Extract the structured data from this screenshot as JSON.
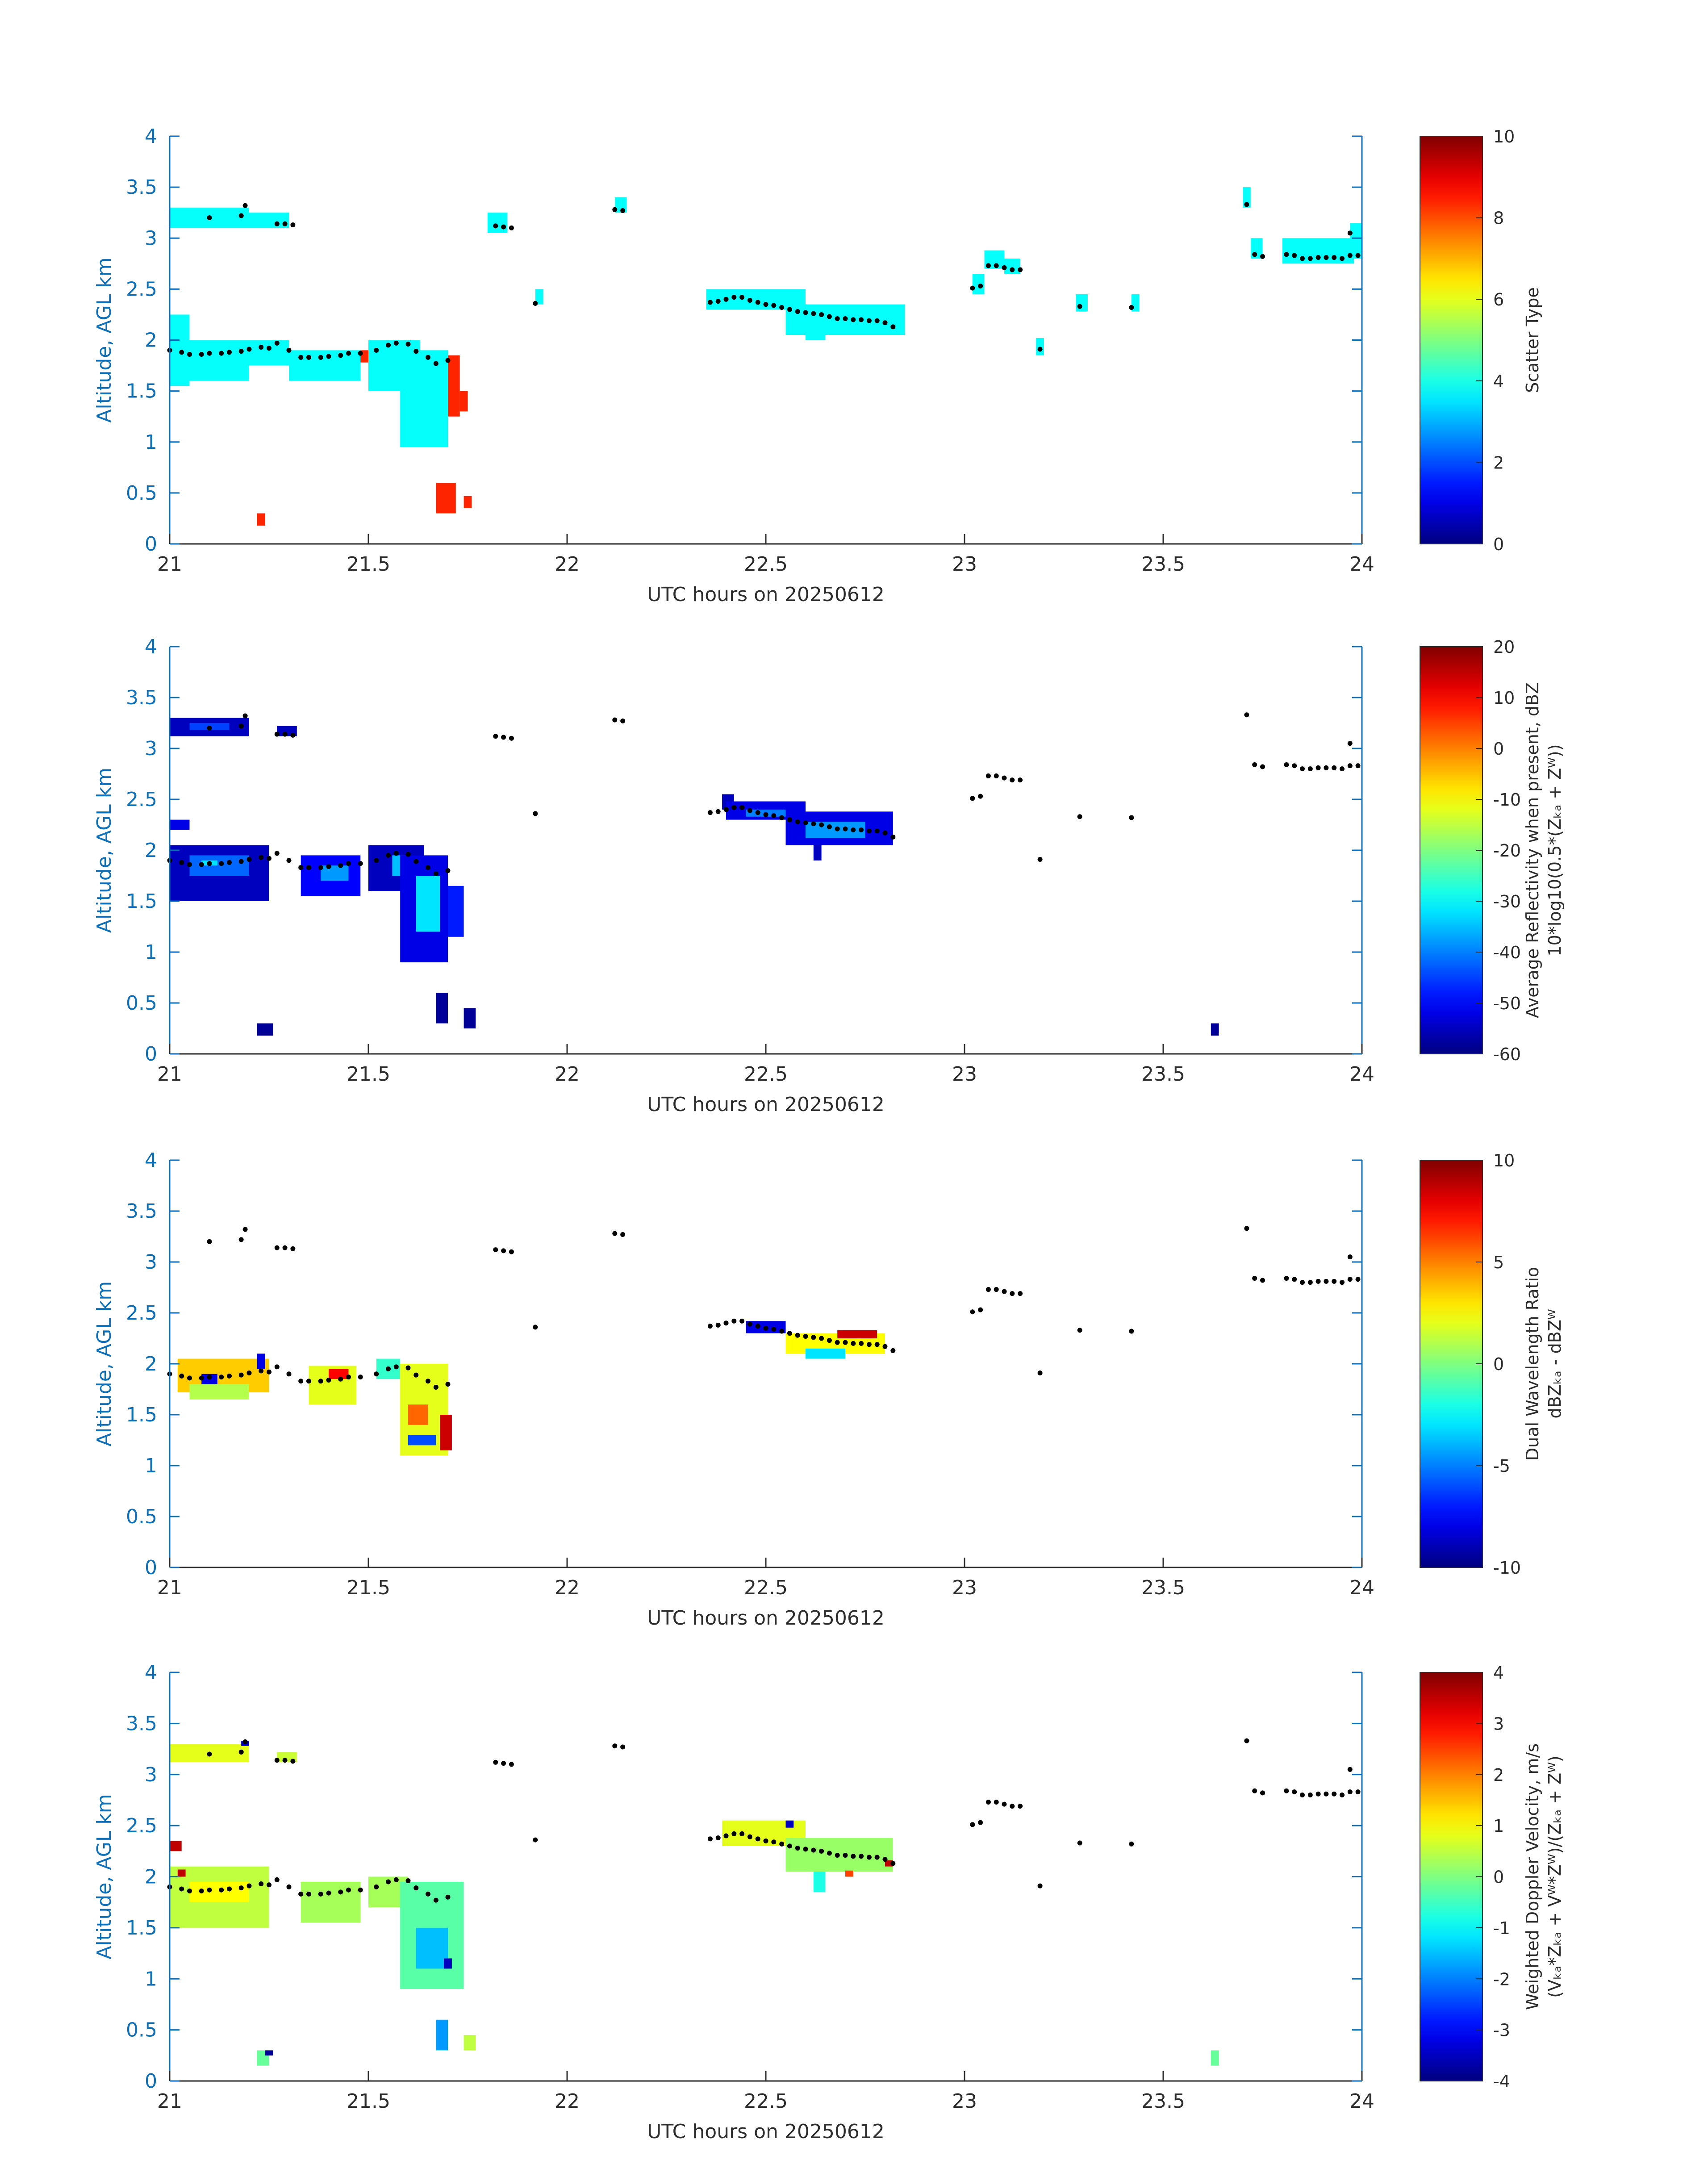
{
  "chart_data": [
    {
      "type": "heatmap",
      "xlabel": "UTC hours on 20250612",
      "ylabel": "Altitude, AGL km",
      "xlim": [
        21,
        24
      ],
      "ylim": [
        0,
        4
      ],
      "xticks": [
        "21",
        "21.5",
        "22",
        "22.5",
        "23",
        "23.5",
        "24"
      ],
      "yticks": [
        "0",
        "0.5",
        "1",
        "1.5",
        "2",
        "2.5",
        "3",
        "3.5",
        "4"
      ],
      "colorbar": {
        "label_lines": [
          "Scatter Type"
        ],
        "range": [
          0,
          10
        ],
        "ticks": [
          "0",
          "2",
          "4",
          "6",
          "8",
          "10"
        ]
      },
      "cells": [
        [
          21.0,
          21.2,
          3.1,
          3.3,
          3.8
        ],
        [
          21.2,
          21.3,
          3.1,
          3.25,
          3.8
        ],
        [
          21.8,
          21.85,
          3.05,
          3.25,
          3.8
        ],
        [
          21.92,
          21.94,
          2.35,
          2.5,
          3.8
        ],
        [
          22.12,
          22.15,
          3.25,
          3.4,
          3.8
        ],
        [
          21.0,
          21.05,
          1.55,
          2.25,
          3.8
        ],
        [
          21.05,
          21.2,
          1.6,
          2.0,
          3.8
        ],
        [
          21.2,
          21.3,
          1.75,
          2.0,
          3.8
        ],
        [
          21.3,
          21.48,
          1.6,
          1.9,
          3.8
        ],
        [
          21.5,
          21.63,
          1.5,
          2.0,
          3.8
        ],
        [
          21.58,
          21.7,
          0.95,
          1.9,
          3.8
        ],
        [
          21.48,
          21.5,
          1.78,
          1.9,
          8.4
        ],
        [
          21.7,
          21.73,
          1.25,
          1.85,
          8.4
        ],
        [
          21.73,
          21.75,
          1.3,
          1.5,
          8.4
        ],
        [
          21.22,
          21.24,
          0.18,
          0.3,
          8.4
        ],
        [
          21.67,
          21.72,
          0.3,
          0.6,
          8.4
        ],
        [
          21.74,
          21.76,
          0.35,
          0.47,
          8.4
        ],
        [
          22.35,
          22.6,
          2.3,
          2.5,
          3.8
        ],
        [
          22.55,
          22.85,
          2.05,
          2.35,
          3.8
        ],
        [
          22.6,
          22.65,
          2.0,
          2.1,
          3.8
        ],
        [
          23.02,
          23.05,
          2.45,
          2.65,
          3.8
        ],
        [
          23.05,
          23.1,
          2.7,
          2.88,
          3.8
        ],
        [
          23.1,
          23.14,
          2.65,
          2.8,
          3.8
        ],
        [
          23.18,
          23.2,
          1.85,
          2.02,
          3.8
        ],
        [
          23.28,
          23.31,
          2.28,
          2.45,
          3.8
        ],
        [
          23.42,
          23.44,
          2.28,
          2.45,
          3.8
        ],
        [
          23.7,
          23.72,
          3.3,
          3.5,
          3.8
        ],
        [
          23.72,
          23.75,
          2.8,
          3.0,
          3.8
        ],
        [
          23.8,
          23.98,
          2.75,
          3.0,
          3.8
        ],
        [
          23.97,
          24.0,
          2.8,
          3.15,
          3.8
        ]
      ]
    },
    {
      "type": "heatmap",
      "xlabel": "UTC hours on 20250612",
      "ylabel": "Altitude, AGL km",
      "xlim": [
        21,
        24
      ],
      "ylim": [
        0,
        4
      ],
      "xticks": [
        "21",
        "21.5",
        "22",
        "22.5",
        "23",
        "23.5",
        "24"
      ],
      "yticks": [
        "0",
        "0.5",
        "1",
        "1.5",
        "2",
        "2.5",
        "3",
        "3.5",
        "4"
      ],
      "colorbar": {
        "label_lines": [
          "Average Reflectivity when present, dBZ",
          "10*log10(0.5*(Zₖₐ + Zᵂ))"
        ],
        "range": [
          -60,
          20
        ],
        "ticks": [
          "-60",
          "-50",
          "-40",
          "-30",
          "-20",
          "-10",
          "0",
          "10",
          "20"
        ]
      },
      "cells": [
        [
          21.0,
          21.2,
          3.12,
          3.3,
          -55
        ],
        [
          21.05,
          21.15,
          3.18,
          3.25,
          -45
        ],
        [
          21.27,
          21.32,
          3.12,
          3.22,
          -55
        ],
        [
          21.0,
          21.05,
          2.2,
          2.3,
          -52
        ],
        [
          21.0,
          21.25,
          1.5,
          2.05,
          -55
        ],
        [
          21.05,
          21.2,
          1.75,
          1.95,
          -42
        ],
        [
          21.08,
          21.12,
          1.85,
          1.9,
          -32
        ],
        [
          21.33,
          21.48,
          1.55,
          1.95,
          -50
        ],
        [
          21.38,
          21.45,
          1.7,
          1.85,
          -38
        ],
        [
          21.5,
          21.64,
          1.6,
          2.05,
          -55
        ],
        [
          21.56,
          21.6,
          1.75,
          1.95,
          -35
        ],
        [
          21.58,
          21.7,
          0.9,
          1.95,
          -52
        ],
        [
          21.62,
          21.68,
          1.2,
          1.75,
          -32
        ],
        [
          21.7,
          21.74,
          1.15,
          1.65,
          -48
        ],
        [
          21.22,
          21.26,
          0.18,
          0.3,
          -58
        ],
        [
          21.67,
          21.7,
          0.3,
          0.6,
          -58
        ],
        [
          21.74,
          21.77,
          0.25,
          0.45,
          -58
        ],
        [
          22.39,
          22.42,
          2.4,
          2.55,
          -55
        ],
        [
          22.4,
          22.6,
          2.3,
          2.48,
          -52
        ],
        [
          22.45,
          22.55,
          2.33,
          2.4,
          -40
        ],
        [
          22.55,
          22.82,
          2.05,
          2.38,
          -52
        ],
        [
          22.6,
          22.75,
          2.12,
          2.28,
          -38
        ],
        [
          22.62,
          22.64,
          1.9,
          2.05,
          -55
        ],
        [
          23.62,
          23.64,
          0.18,
          0.3,
          -58
        ]
      ]
    },
    {
      "type": "heatmap",
      "xlabel": "UTC hours on 20250612",
      "ylabel": "Altitude, AGL km",
      "xlim": [
        21,
        24
      ],
      "ylim": [
        0,
        4
      ],
      "xticks": [
        "21",
        "21.5",
        "22",
        "22.5",
        "23",
        "23.5",
        "24"
      ],
      "yticks": [
        "0",
        "0.5",
        "1",
        "1.5",
        "2",
        "2.5",
        "3",
        "3.5",
        "4"
      ],
      "colorbar": {
        "label_lines": [
          "Dual Wavelength Ratio",
          "dBZₖₐ - dBZᵂ"
        ],
        "range": [
          -10,
          10
        ],
        "ticks": [
          "-10",
          "-5",
          "0",
          "5",
          "10"
        ]
      },
      "cells": [
        [
          21.02,
          21.25,
          1.72,
          2.05,
          3.5
        ],
        [
          21.05,
          21.2,
          1.65,
          1.8,
          1.0
        ],
        [
          21.08,
          21.12,
          1.8,
          1.9,
          -8
        ],
        [
          21.22,
          21.24,
          1.95,
          2.1,
          -8
        ],
        [
          21.35,
          21.47,
          1.6,
          1.98,
          2.0
        ],
        [
          21.4,
          21.45,
          1.85,
          1.95,
          7.5
        ],
        [
          21.52,
          21.58,
          1.85,
          2.05,
          -1.5
        ],
        [
          21.58,
          21.7,
          1.1,
          2.0,
          2.0
        ],
        [
          21.6,
          21.65,
          1.4,
          1.6,
          5.5
        ],
        [
          21.68,
          21.71,
          1.15,
          1.5,
          8.5
        ],
        [
          21.6,
          21.67,
          1.2,
          1.3,
          -6
        ],
        [
          22.45,
          22.55,
          2.3,
          2.42,
          -8
        ],
        [
          22.55,
          22.8,
          2.1,
          2.3,
          2.5
        ],
        [
          22.6,
          22.7,
          2.05,
          2.15,
          -3
        ],
        [
          22.68,
          22.78,
          2.25,
          2.33,
          8.5
        ]
      ]
    },
    {
      "type": "heatmap",
      "xlabel": "UTC hours on 20250612",
      "ylabel": "Altitude, AGL km",
      "xlim": [
        21,
        24
      ],
      "ylim": [
        0,
        4
      ],
      "xticks": [
        "21",
        "21.5",
        "22",
        "22.5",
        "23",
        "23.5",
        "24"
      ],
      "yticks": [
        "0",
        "0.5",
        "1",
        "1.5",
        "2",
        "2.5",
        "3",
        "3.5",
        "4"
      ],
      "colorbar": {
        "label_lines": [
          "Weighted Doppler Velocity, m/s",
          "(Vₖₐ*Zₖₐ + Vᵂ*Zᵂ)/(Zₖₐ + Zᵂ)"
        ],
        "range": [
          -4,
          4
        ],
        "ticks": [
          "-4",
          "-3",
          "-2",
          "-1",
          "0",
          "1",
          "2",
          "3",
          "4"
        ]
      },
      "cells": [
        [
          21.0,
          21.2,
          3.12,
          3.3,
          0.8
        ],
        [
          21.27,
          21.32,
          3.12,
          3.22,
          0.6
        ],
        [
          21.0,
          21.25,
          1.5,
          2.1,
          0.5
        ],
        [
          21.05,
          21.2,
          1.75,
          1.95,
          1.0
        ],
        [
          21.0,
          21.03,
          2.25,
          2.35,
          3.5
        ],
        [
          21.33,
          21.48,
          1.55,
          1.95,
          0.3
        ],
        [
          21.5,
          21.6,
          1.7,
          2.0,
          0.3
        ],
        [
          21.58,
          21.74,
          0.9,
          1.95,
          -0.3
        ],
        [
          21.62,
          21.7,
          1.1,
          1.5,
          -1.5
        ],
        [
          21.22,
          21.25,
          0.15,
          0.3,
          -0.2
        ],
        [
          21.67,
          21.7,
          0.3,
          0.6,
          -1.8
        ],
        [
          21.74,
          21.77,
          0.3,
          0.45,
          0.5
        ],
        [
          22.39,
          22.6,
          2.3,
          2.55,
          0.8
        ],
        [
          22.55,
          22.82,
          2.05,
          2.38,
          0.2
        ],
        [
          22.62,
          22.65,
          1.85,
          2.05,
          -0.8
        ],
        [
          23.62,
          23.64,
          0.15,
          0.3,
          -0.2
        ]
      ],
      "accent_cells": [
        [
          21.02,
          21.04,
          2.0,
          2.07,
          3.5
        ],
        [
          21.18,
          21.2,
          3.28,
          3.33,
          -3.5
        ],
        [
          21.24,
          21.26,
          0.25,
          0.3,
          -3.8
        ],
        [
          21.69,
          21.71,
          1.1,
          1.2,
          -3.5
        ],
        [
          22.55,
          22.57,
          2.48,
          2.55,
          -3.5
        ],
        [
          22.8,
          22.82,
          2.1,
          2.16,
          3.5
        ],
        [
          22.7,
          22.72,
          2.0,
          2.06,
          2.5
        ]
      ]
    }
  ],
  "dots": [
    [
      21.0,
      1.9
    ],
    [
      21.03,
      1.88
    ],
    [
      21.05,
      1.86
    ],
    [
      21.08,
      1.86
    ],
    [
      21.1,
      1.87
    ],
    [
      21.13,
      1.87
    ],
    [
      21.15,
      1.88
    ],
    [
      21.18,
      1.89
    ],
    [
      21.2,
      1.91
    ],
    [
      21.23,
      1.93
    ],
    [
      21.25,
      1.92
    ],
    [
      21.27,
      1.97
    ],
    [
      21.3,
      1.9
    ],
    [
      21.33,
      1.83
    ],
    [
      21.35,
      1.83
    ],
    [
      21.38,
      1.83
    ],
    [
      21.4,
      1.84
    ],
    [
      21.43,
      1.85
    ],
    [
      21.45,
      1.87
    ],
    [
      21.48,
      1.87
    ],
    [
      21.52,
      1.9
    ],
    [
      21.55,
      1.95
    ],
    [
      21.57,
      1.97
    ],
    [
      21.6,
      1.96
    ],
    [
      21.62,
      1.89
    ],
    [
      21.65,
      1.83
    ],
    [
      21.67,
      1.77
    ],
    [
      21.7,
      1.8
    ],
    [
      21.1,
      3.2
    ],
    [
      21.18,
      3.22
    ],
    [
      21.19,
      3.32
    ],
    [
      21.27,
      3.14
    ],
    [
      21.29,
      3.14
    ],
    [
      21.31,
      3.13
    ],
    [
      21.82,
      3.12
    ],
    [
      21.84,
      3.11
    ],
    [
      21.86,
      3.1
    ],
    [
      21.92,
      2.36
    ],
    [
      22.12,
      3.28
    ],
    [
      22.14,
      3.27
    ],
    [
      22.36,
      2.37
    ],
    [
      22.38,
      2.38
    ],
    [
      22.4,
      2.4
    ],
    [
      22.42,
      2.42
    ],
    [
      22.44,
      2.42
    ],
    [
      22.46,
      2.39
    ],
    [
      22.48,
      2.37
    ],
    [
      22.5,
      2.35
    ],
    [
      22.52,
      2.34
    ],
    [
      22.54,
      2.32
    ],
    [
      22.56,
      2.3
    ],
    [
      22.58,
      2.28
    ],
    [
      22.6,
      2.27
    ],
    [
      22.62,
      2.26
    ],
    [
      22.64,
      2.25
    ],
    [
      22.66,
      2.23
    ],
    [
      22.68,
      2.21
    ],
    [
      22.7,
      2.21
    ],
    [
      22.72,
      2.2
    ],
    [
      22.74,
      2.2
    ],
    [
      22.76,
      2.19
    ],
    [
      22.78,
      2.19
    ],
    [
      22.8,
      2.17
    ],
    [
      22.82,
      2.13
    ],
    [
      23.02,
      2.51
    ],
    [
      23.04,
      2.53
    ],
    [
      23.06,
      2.73
    ],
    [
      23.08,
      2.73
    ],
    [
      23.1,
      2.71
    ],
    [
      23.12,
      2.69
    ],
    [
      23.14,
      2.69
    ],
    [
      23.19,
      1.91
    ],
    [
      23.29,
      2.33
    ],
    [
      23.42,
      2.32
    ],
    [
      23.71,
      3.33
    ],
    [
      23.73,
      2.84
    ],
    [
      23.75,
      2.82
    ],
    [
      23.81,
      2.84
    ],
    [
      23.83,
      2.83
    ],
    [
      23.85,
      2.8
    ],
    [
      23.87,
      2.8
    ],
    [
      23.89,
      2.81
    ],
    [
      23.91,
      2.81
    ],
    [
      23.93,
      2.81
    ],
    [
      23.95,
      2.8
    ],
    [
      23.97,
      3.05
    ],
    [
      23.97,
      2.83
    ],
    [
      23.99,
      2.83
    ]
  ]
}
